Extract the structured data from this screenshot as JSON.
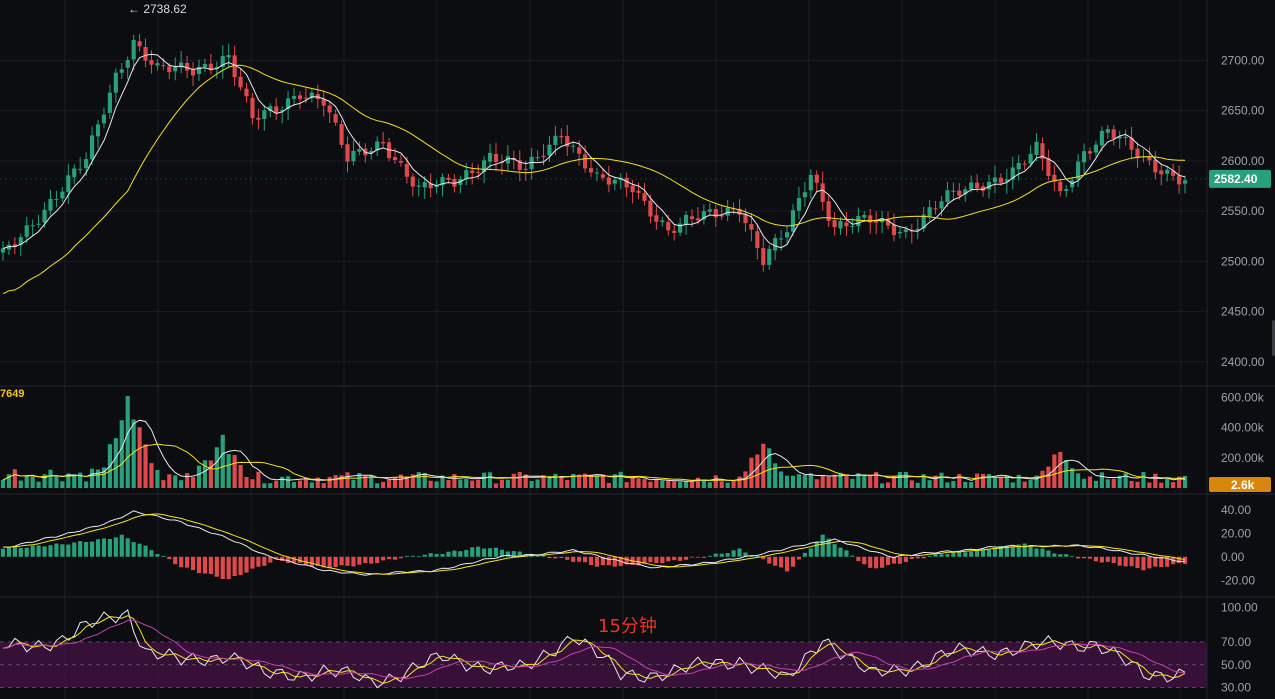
{
  "colors": {
    "background": "#0c0d10",
    "grid": "#1b1d22",
    "up": "#26a17b",
    "down": "#e0494b",
    "ma_fast": "#e7e9ee",
    "ma_slow": "#f3e21a",
    "rsi_band_fill": "#3f1240",
    "rsi_line_alt": "#c93fb0",
    "price_badge": "#26a17b",
    "volume_badge": "#d9860f"
  },
  "timeframe_label": "15分钟",
  "high_marker": {
    "text": "← 2738.62",
    "value": 2738.62
  },
  "price_badge": {
    "text": "2582.40",
    "value": 2582.4
  },
  "volume_badge": {
    "text": "2.6k"
  },
  "volume_label": "7649",
  "price_axis_ticks": [
    "2700.00",
    "2650.00",
    "2600.00",
    "2550.00",
    "2500.00",
    "2450.00",
    "2400.00"
  ],
  "volume_axis_ticks": [
    "600.00k",
    "400.00k",
    "200.00k"
  ],
  "macd_axis_ticks": [
    "40.00",
    "20.00",
    "0.00",
    "-20.00"
  ],
  "rsi_axis_ticks": [
    "100.00",
    "70.00",
    "50.00",
    "30.00"
  ],
  "chart_data": [
    {
      "type": "candlestick",
      "panel": "price",
      "x_unit": "15-minute bar index",
      "ylim": [
        2380,
        2760
      ],
      "grid": true,
      "overlays": [
        "fast moving average (white)",
        "slow moving average (yellow)"
      ],
      "bar_count": 200,
      "close_keyframes": [
        {
          "i": 0,
          "v": 2505
        },
        {
          "i": 8,
          "v": 2560
        },
        {
          "i": 14,
          "v": 2600
        },
        {
          "i": 19,
          "v": 2685
        },
        {
          "i": 22,
          "v": 2720
        },
        {
          "i": 26,
          "v": 2690
        },
        {
          "i": 32,
          "v": 2690
        },
        {
          "i": 38,
          "v": 2705
        },
        {
          "i": 42,
          "v": 2640
        },
        {
          "i": 46,
          "v": 2650
        },
        {
          "i": 50,
          "v": 2670
        },
        {
          "i": 54,
          "v": 2660
        },
        {
          "i": 58,
          "v": 2600
        },
        {
          "i": 64,
          "v": 2620
        },
        {
          "i": 70,
          "v": 2570
        },
        {
          "i": 76,
          "v": 2580
        },
        {
          "i": 82,
          "v": 2605
        },
        {
          "i": 88,
          "v": 2590
        },
        {
          "i": 94,
          "v": 2630
        },
        {
          "i": 100,
          "v": 2580
        },
        {
          "i": 106,
          "v": 2575
        },
        {
          "i": 112,
          "v": 2530
        },
        {
          "i": 118,
          "v": 2545
        },
        {
          "i": 124,
          "v": 2555
        },
        {
          "i": 128,
          "v": 2500
        },
        {
          "i": 132,
          "v": 2530
        },
        {
          "i": 136,
          "v": 2590
        },
        {
          "i": 140,
          "v": 2535
        },
        {
          "i": 146,
          "v": 2540
        },
        {
          "i": 152,
          "v": 2530
        },
        {
          "i": 158,
          "v": 2560
        },
        {
          "i": 164,
          "v": 2575
        },
        {
          "i": 170,
          "v": 2590
        },
        {
          "i": 174,
          "v": 2610
        },
        {
          "i": 178,
          "v": 2565
        },
        {
          "i": 182,
          "v": 2610
        },
        {
          "i": 186,
          "v": 2630
        },
        {
          "i": 192,
          "v": 2600
        },
        {
          "i": 199,
          "v": 2582
        }
      ]
    },
    {
      "type": "bar",
      "panel": "volume",
      "ylim": [
        0,
        650000
      ],
      "typical_value": 60000,
      "peaks": [
        {
          "i": 21,
          "v": 480000
        },
        {
          "i": 37,
          "v": 370000
        },
        {
          "i": 128,
          "v": 330000
        },
        {
          "i": 178,
          "v": 280000
        }
      ]
    },
    {
      "type": "bar",
      "panel": "macd",
      "ylim": [
        -30,
        50
      ],
      "overlays": [
        "macd line (white)",
        "signal line (yellow)"
      ],
      "histogram_keyframes": [
        {
          "i": 0,
          "v": 8
        },
        {
          "i": 10,
          "v": 10
        },
        {
          "i": 20,
          "v": 18
        },
        {
          "i": 24,
          "v": 8
        },
        {
          "i": 30,
          "v": -8
        },
        {
          "i": 38,
          "v": -20
        },
        {
          "i": 46,
          "v": -2
        },
        {
          "i": 54,
          "v": -10
        },
        {
          "i": 62,
          "v": -5
        },
        {
          "i": 80,
          "v": 8
        },
        {
          "i": 90,
          "v": 2
        },
        {
          "i": 100,
          "v": -8
        },
        {
          "i": 112,
          "v": -5
        },
        {
          "i": 124,
          "v": 6
        },
        {
          "i": 132,
          "v": -12
        },
        {
          "i": 138,
          "v": 18
        },
        {
          "i": 146,
          "v": -10
        },
        {
          "i": 160,
          "v": 4
        },
        {
          "i": 172,
          "v": 10
        },
        {
          "i": 184,
          "v": -4
        },
        {
          "i": 192,
          "v": -10
        },
        {
          "i": 199,
          "v": -6
        }
      ],
      "line_keyframes": [
        {
          "i": 0,
          "v": 8
        },
        {
          "i": 10,
          "v": 18
        },
        {
          "i": 18,
          "v": 30
        },
        {
          "i": 22,
          "v": 38
        },
        {
          "i": 30,
          "v": 30
        },
        {
          "i": 38,
          "v": 15
        },
        {
          "i": 44,
          "v": 2
        },
        {
          "i": 54,
          "v": -12
        },
        {
          "i": 62,
          "v": -15
        },
        {
          "i": 72,
          "v": -12
        },
        {
          "i": 84,
          "v": 0
        },
        {
          "i": 96,
          "v": 5
        },
        {
          "i": 110,
          "v": -10
        },
        {
          "i": 126,
          "v": 0
        },
        {
          "i": 134,
          "v": 10
        },
        {
          "i": 140,
          "v": 14
        },
        {
          "i": 150,
          "v": 0
        },
        {
          "i": 166,
          "v": 8
        },
        {
          "i": 180,
          "v": 10
        },
        {
          "i": 192,
          "v": 2
        },
        {
          "i": 199,
          "v": -5
        }
      ]
    },
    {
      "type": "line",
      "panel": "rsi",
      "ylim": [
        20,
        105
      ],
      "band": [
        30,
        70
      ],
      "overlays": [
        "rsi (white)",
        "smoothed (yellow)",
        "average (magenta)"
      ],
      "keyframes": [
        {
          "i": 0,
          "v": 65
        },
        {
          "i": 10,
          "v": 72
        },
        {
          "i": 18,
          "v": 92
        },
        {
          "i": 21,
          "v": 97
        },
        {
          "i": 24,
          "v": 62
        },
        {
          "i": 30,
          "v": 52
        },
        {
          "i": 38,
          "v": 60
        },
        {
          "i": 44,
          "v": 40
        },
        {
          "i": 54,
          "v": 45
        },
        {
          "i": 62,
          "v": 35
        },
        {
          "i": 74,
          "v": 55
        },
        {
          "i": 88,
          "v": 45
        },
        {
          "i": 96,
          "v": 78
        },
        {
          "i": 104,
          "v": 40
        },
        {
          "i": 114,
          "v": 45
        },
        {
          "i": 124,
          "v": 55
        },
        {
          "i": 132,
          "v": 35
        },
        {
          "i": 138,
          "v": 75
        },
        {
          "i": 146,
          "v": 40
        },
        {
          "i": 160,
          "v": 60
        },
        {
          "i": 172,
          "v": 65
        },
        {
          "i": 184,
          "v": 70
        },
        {
          "i": 192,
          "v": 40
        },
        {
          "i": 199,
          "v": 45
        }
      ]
    }
  ]
}
